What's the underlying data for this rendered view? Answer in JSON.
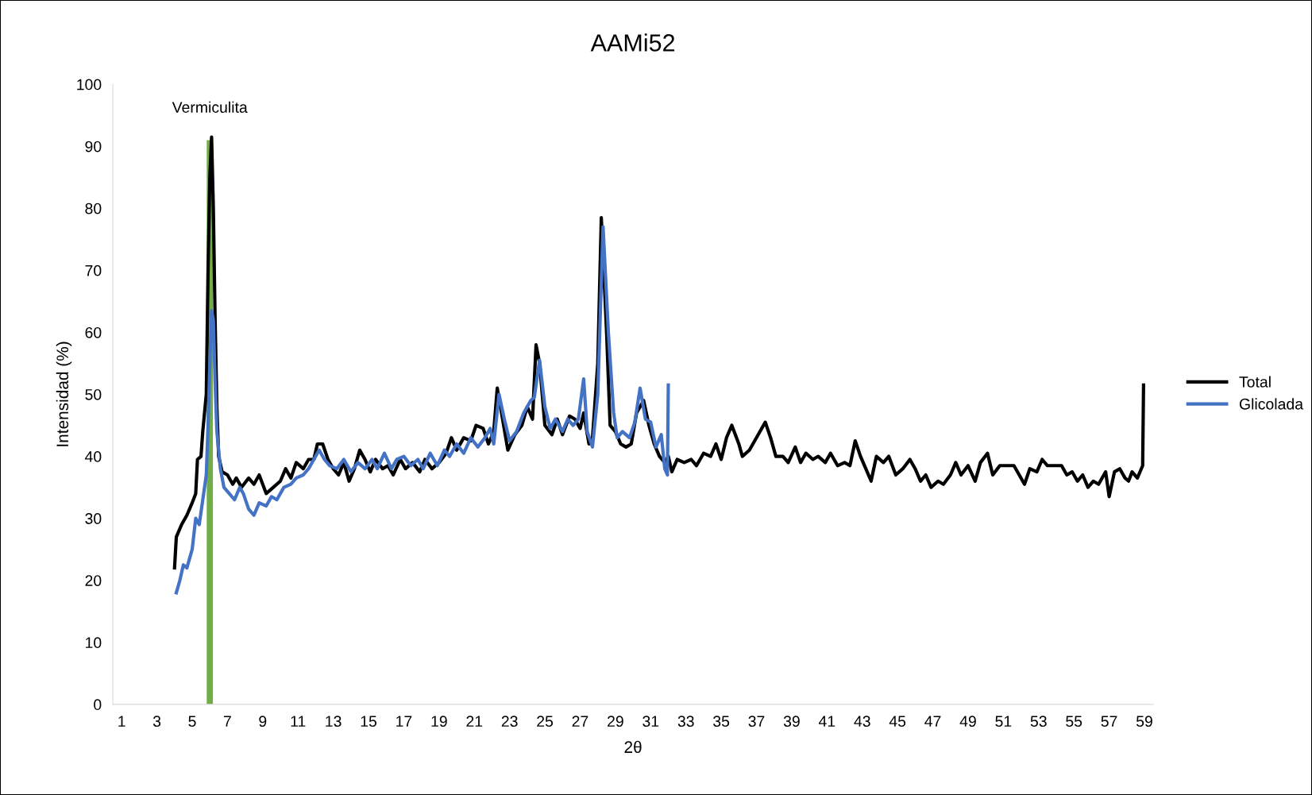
{
  "chart_data": {
    "type": "line",
    "title": "AAMi52",
    "xlabel": "2θ",
    "ylabel": "Intensidad (%)",
    "xlim": [
      0.5,
      59.5
    ],
    "xticks": [
      1,
      3,
      5,
      7,
      9,
      11,
      13,
      15,
      17,
      19,
      21,
      23,
      25,
      27,
      29,
      31,
      33,
      35,
      37,
      39,
      41,
      43,
      45,
      47,
      49,
      51,
      53,
      55,
      57,
      59
    ],
    "ylim": [
      0,
      100
    ],
    "yticks": [
      0,
      10,
      20,
      30,
      40,
      50,
      60,
      70,
      80,
      90,
      100
    ],
    "grid": false,
    "legend": "right",
    "marker": "none",
    "line_style": "solid",
    "series": [
      {
        "name": "Total",
        "color": "#000000",
        "x": [
          4.0,
          4.1,
          4.4,
          4.7,
          5.0,
          5.2,
          5.3,
          5.5,
          5.6,
          5.8,
          5.9,
          6.0,
          6.1,
          6.2,
          6.3,
          6.4,
          6.5,
          6.7,
          7.0,
          7.3,
          7.5,
          7.8,
          8.2,
          8.5,
          8.8,
          9.2,
          9.6,
          10.0,
          10.3,
          10.6,
          10.9,
          11.3,
          11.6,
          11.9,
          12.1,
          12.4,
          12.7,
          13.0,
          13.3,
          13.6,
          13.9,
          14.2,
          14.5,
          14.8,
          15.1,
          15.4,
          15.8,
          16.1,
          16.4,
          16.8,
          17.1,
          17.5,
          17.9,
          18.2,
          18.6,
          19.0,
          19.4,
          19.7,
          20.0,
          20.4,
          20.8,
          21.1,
          21.5,
          21.8,
          22.1,
          22.3,
          22.6,
          22.9,
          23.3,
          23.7,
          24.0,
          24.3,
          24.5,
          24.7,
          25.0,
          25.4,
          25.7,
          26.0,
          26.4,
          26.7,
          27.0,
          27.2,
          27.5,
          27.7,
          28.0,
          28.2,
          28.5,
          28.7,
          29.0,
          29.3,
          29.6,
          29.9,
          30.2,
          30.6,
          30.9,
          31.2,
          31.5,
          31.8,
          32.0,
          32.2,
          32.5,
          32.9,
          33.3,
          33.6,
          34.0,
          34.4,
          34.7,
          35.0,
          35.3,
          35.6,
          36.0,
          36.2,
          36.6,
          36.9,
          37.2,
          37.5,
          37.8,
          38.1,
          38.5,
          38.8,
          39.2,
          39.5,
          39.8,
          40.2,
          40.5,
          40.9,
          41.2,
          41.6,
          42.0,
          42.3,
          42.6,
          42.9,
          43.2,
          43.5,
          43.8,
          44.2,
          44.5,
          44.9,
          45.3,
          45.7,
          46.0,
          46.3,
          46.6,
          46.9,
          47.3,
          47.6,
          48.0,
          48.3,
          48.6,
          49.0,
          49.4,
          49.7,
          50.1,
          50.4,
          50.8,
          51.2,
          51.6,
          51.9,
          52.2,
          52.5,
          52.9,
          53.2,
          53.5,
          53.9,
          54.3,
          54.6,
          54.9,
          55.2,
          55.5,
          55.8,
          56.1,
          56.4,
          56.8,
          57.0,
          57.3,
          57.6,
          57.9,
          58.1,
          58.3,
          58.6,
          58.9,
          58.95
        ],
        "values": [
          22,
          27,
          29,
          30.5,
          32.5,
          34,
          39.5,
          40,
          44,
          50,
          70,
          85,
          91.5,
          80,
          62,
          48,
          40,
          37.5,
          37,
          35.5,
          36.5,
          35,
          36.5,
          35.5,
          37,
          34,
          35,
          36,
          38,
          36.5,
          39,
          38,
          39.5,
          39.5,
          42,
          42,
          39.5,
          38,
          37,
          39,
          36,
          38,
          41,
          39.5,
          37.5,
          39.5,
          38,
          38.5,
          37,
          39.5,
          38,
          39,
          37.5,
          39.5,
          38,
          39,
          40.5,
          43,
          41,
          43,
          42.5,
          45,
          44.5,
          42,
          44,
          51,
          46,
          41,
          43.5,
          45,
          48,
          46,
          58,
          55,
          45,
          43.5,
          46,
          43.5,
          46.5,
          46,
          44.5,
          47,
          42,
          43,
          55,
          78.5,
          60,
          45,
          44,
          42,
          41.5,
          42,
          47,
          49,
          45,
          42,
          40,
          39,
          40,
          37.5,
          39.5,
          39,
          39.5,
          38.5,
          40.5,
          40,
          42,
          39.5,
          43,
          45,
          42,
          40,
          41,
          42.5,
          44,
          45.5,
          43,
          40,
          40,
          39,
          41.5,
          39,
          40.5,
          39.5,
          40,
          39,
          40.5,
          38.5,
          39,
          38.5,
          42.5,
          40,
          38,
          36,
          40,
          39,
          40,
          37,
          38,
          39.5,
          38,
          36,
          37,
          35,
          36,
          35.5,
          37,
          39,
          37,
          38.5,
          36,
          39,
          40.5,
          37,
          38.5,
          38.5,
          38.5,
          37,
          35.5,
          38,
          37.5,
          39.5,
          38.5,
          38.5,
          38.5,
          37,
          37.5,
          36,
          37,
          35,
          36,
          35.5,
          37.5,
          33.5,
          37.5,
          38,
          36.5,
          36,
          37.5,
          36.5,
          38.5,
          51.5
        ]
      },
      {
        "name": "Glicolada",
        "color": "#4472c4",
        "x": [
          4.1,
          4.3,
          4.5,
          4.7,
          5.0,
          5.2,
          5.4,
          5.6,
          5.8,
          5.9,
          6.0,
          6.1,
          6.2,
          6.3,
          6.4,
          6.6,
          6.8,
          7.1,
          7.4,
          7.7,
          7.9,
          8.2,
          8.5,
          8.8,
          9.2,
          9.5,
          9.8,
          10.2,
          10.6,
          10.9,
          11.3,
          11.6,
          12.0,
          12.2,
          12.5,
          12.8,
          13.2,
          13.6,
          14.0,
          14.4,
          14.8,
          15.2,
          15.5,
          15.9,
          16.3,
          16.6,
          17.0,
          17.4,
          17.8,
          18.1,
          18.5,
          18.9,
          19.3,
          19.6,
          20.0,
          20.4,
          20.8,
          21.2,
          21.6,
          21.9,
          22.1,
          22.4,
          22.7,
          23.0,
          23.4,
          23.8,
          24.2,
          24.4,
          24.7,
          25.0,
          25.3,
          25.6,
          26.0,
          26.3,
          26.6,
          26.9,
          27.2,
          27.4,
          27.7,
          28.0,
          28.3,
          28.6,
          28.9,
          29.1,
          29.4,
          29.8,
          30.1,
          30.4,
          30.7,
          31.0,
          31.3,
          31.6,
          31.8,
          31.95,
          32.0
        ],
        "values": [
          18,
          20,
          22.5,
          22,
          25,
          30,
          29,
          33,
          37,
          45,
          55,
          63.5,
          62,
          52,
          44,
          38,
          35,
          34,
          33,
          35,
          34,
          31.5,
          30.5,
          32.5,
          32,
          33.5,
          33,
          35,
          35.5,
          36.5,
          37,
          38,
          40,
          41,
          39.5,
          38.5,
          38,
          39.5,
          37.5,
          39,
          38,
          39.5,
          38,
          40.5,
          38,
          39.5,
          40,
          38.5,
          39.5,
          38,
          40.5,
          38.5,
          41,
          40,
          42,
          40.5,
          43,
          41.5,
          43,
          44.5,
          42,
          50,
          46,
          42.5,
          44,
          47,
          49,
          49.5,
          55.5,
          48,
          44.5,
          46,
          44,
          46,
          45,
          46,
          52.5,
          44,
          41.5,
          50,
          77,
          60,
          47,
          43,
          44,
          43,
          45.5,
          51,
          46,
          45.5,
          41.5,
          43.5,
          38,
          37,
          51.5
        ]
      },
      {
        "type": "bar",
        "color": "#70ad47",
        "x": [
          6
        ],
        "values": [
          91
        ]
      }
    ],
    "annotations": [
      {
        "text": "Vermiculita",
        "x": 6,
        "y": 91
      }
    ]
  }
}
